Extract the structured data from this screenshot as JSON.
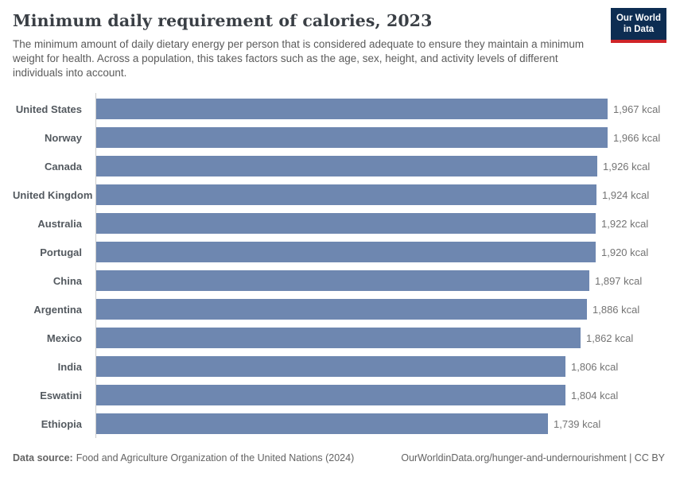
{
  "header": {
    "title": "Minimum daily requirement of calories, 2023",
    "subtitle": "The minimum amount of daily dietary energy per person that is considered adequate to ensure they maintain a minimum weight for health. Across a population, this takes factors such as the age, sex, height, and activity levels of different individuals into account.",
    "logo": {
      "line1": "Our World",
      "line2": "in Data"
    }
  },
  "chart_data": {
    "type": "bar",
    "orientation": "horizontal",
    "title": "Minimum daily requirement of calories, 2023",
    "unit": "kcal",
    "xlim": [
      0,
      1967
    ],
    "grid": false,
    "legend": "none",
    "bar_color": "#6e87b0",
    "axis_line_color": "#cccccc",
    "categories": [
      "United States",
      "Norway",
      "Canada",
      "United Kingdom",
      "Australia",
      "Portugal",
      "China",
      "Argentina",
      "Mexico",
      "India",
      "Eswatini",
      "Ethiopia"
    ],
    "values": [
      1967,
      1966,
      1926,
      1924,
      1922,
      1920,
      1897,
      1886,
      1862,
      1806,
      1804,
      1739
    ],
    "value_labels": [
      "1,967 kcal",
      "1,966 kcal",
      "1,926 kcal",
      "1,924 kcal",
      "1,922 kcal",
      "1,920 kcal",
      "1,897 kcal",
      "1,886 kcal",
      "1,862 kcal",
      "1,806 kcal",
      "1,804 kcal",
      "1,739 kcal"
    ]
  },
  "footer": {
    "datasource_label": "Data source:",
    "datasource_text": "Food and Agriculture Organization of the United Nations (2024)",
    "credit": "OurWorldinData.org/hunger-and-undernourishment | CC BY"
  }
}
